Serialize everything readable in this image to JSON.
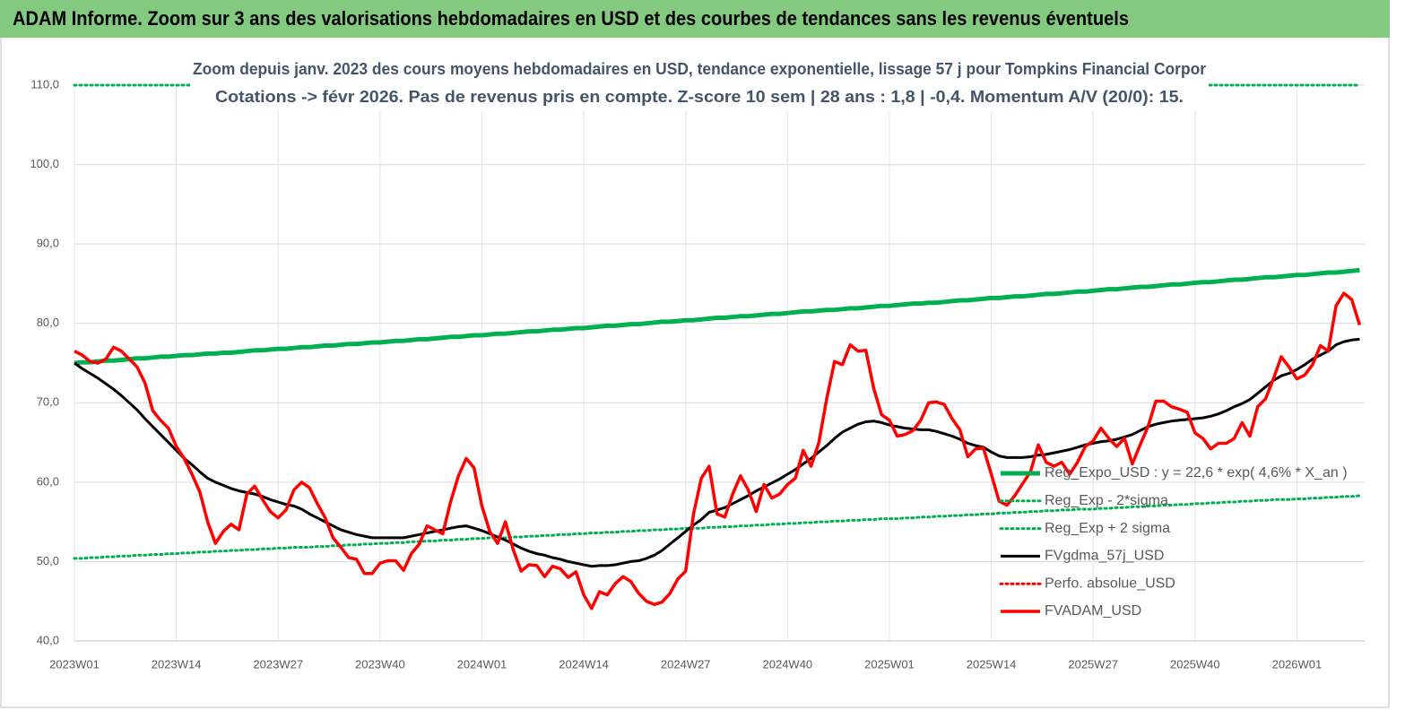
{
  "chart_data": {
    "type": "line",
    "title": "ADAM Informe. Zoom sur 3 ans des valorisations hebdomadaires en USD et des courbes de tendances sans les revenus éventuels",
    "subtitle": [
      "Zoom depuis janv. 2023 des cours moyens hebdomadaires en USD, tendance exponentielle, lissage 57 j pour Tompkins Financial Corpor",
      "Cotations -> févr 2026.  Pas de revenus pris en compte. Z-score 10 sem | 28 ans : 1,8 | -0,4. Momentum A/V (20/0): 15."
    ],
    "categories": [
      "2023W01",
      null,
      null,
      null,
      null,
      null,
      null,
      null,
      null,
      null,
      null,
      null,
      null,
      "2023W14",
      null,
      null,
      null,
      null,
      null,
      null,
      null,
      null,
      null,
      null,
      null,
      null,
      "2023W27",
      null,
      null,
      null,
      null,
      null,
      null,
      null,
      null,
      null,
      null,
      null,
      null,
      "2023W40",
      null,
      null,
      null,
      null,
      null,
      null,
      null,
      null,
      null,
      null,
      null,
      null,
      "2024W01",
      null,
      null,
      null,
      null,
      null,
      null,
      null,
      null,
      null,
      null,
      null,
      null,
      "2024W14",
      null,
      null,
      null,
      null,
      null,
      null,
      null,
      null,
      null,
      null,
      null,
      null,
      "2024W27",
      null,
      null,
      null,
      null,
      null,
      null,
      null,
      null,
      null,
      null,
      null,
      null,
      "2024W40",
      null,
      null,
      null,
      null,
      null,
      null,
      null,
      null,
      null,
      null,
      null,
      null,
      "2025W01",
      null,
      null,
      null,
      null,
      null,
      null,
      null,
      null,
      null,
      null,
      null,
      null,
      "2025W14",
      null,
      null,
      null,
      null,
      null,
      null,
      null,
      null,
      null,
      null,
      null,
      null,
      "2025W27",
      null,
      null,
      null,
      null,
      null,
      null,
      null,
      null,
      null,
      null,
      null,
      null,
      "2025W40",
      null,
      null,
      null,
      null,
      null,
      null,
      null,
      null,
      null,
      null,
      null,
      null,
      "2026W01",
      null,
      null,
      null,
      null,
      null,
      null,
      null,
      null
    ],
    "ylim": [
      40,
      110
    ],
    "yticks": [
      {
        "value": 40,
        "label": "40,0"
      },
      {
        "value": 50,
        "label": "50,0"
      },
      {
        "value": 60,
        "label": "60,0"
      },
      {
        "value": 70,
        "label": "70,0"
      },
      {
        "value": 80,
        "label": "80,0"
      },
      {
        "value": 90,
        "label": "90,0"
      },
      {
        "value": 100,
        "label": "100,0"
      },
      {
        "value": 110,
        "label": "110,0"
      }
    ],
    "grid": true,
    "series": [
      {
        "name": "Reg_Expo_USD : y = 22,6 * exp( 4,6% *  X_an )",
        "color": "#00b050",
        "style": "thick",
        "values": [
          75.0,
          75.1,
          75.1,
          75.2,
          75.3,
          75.3,
          75.4,
          75.5,
          75.6,
          75.6,
          75.7,
          75.8,
          75.8,
          75.9,
          76.0,
          76.0,
          76.1,
          76.2,
          76.2,
          76.3,
          76.3,
          76.4,
          76.5,
          76.6,
          76.6,
          76.7,
          76.8,
          76.8,
          76.9,
          77.0,
          77.0,
          77.1,
          77.2,
          77.2,
          77.3,
          77.4,
          77.4,
          77.5,
          77.6,
          77.6,
          77.7,
          77.8,
          77.8,
          77.9,
          78.0,
          78.0,
          78.1,
          78.2,
          78.3,
          78.3,
          78.4,
          78.5,
          78.5,
          78.6,
          78.7,
          78.7,
          78.8,
          78.9,
          79.0,
          79.0,
          79.1,
          79.2,
          79.2,
          79.3,
          79.4,
          79.4,
          79.5,
          79.6,
          79.7,
          79.7,
          79.8,
          79.9,
          79.9,
          80.0,
          80.1,
          80.2,
          80.2,
          80.3,
          80.4,
          80.4,
          80.5,
          80.6,
          80.7,
          80.7,
          80.8,
          80.9,
          80.9,
          81.0,
          81.1,
          81.2,
          81.2,
          81.3,
          81.4,
          81.5,
          81.5,
          81.6,
          81.7,
          81.7,
          81.8,
          81.9,
          81.9,
          82.0,
          82.1,
          82.2,
          82.2,
          82.3,
          82.4,
          82.5,
          82.5,
          82.6,
          82.6,
          82.7,
          82.8,
          82.9,
          82.9,
          83.0,
          83.1,
          83.2,
          83.2,
          83.3,
          83.4,
          83.4,
          83.5,
          83.6,
          83.7,
          83.7,
          83.8,
          83.9,
          84.0,
          84.0,
          84.1,
          84.2,
          84.3,
          84.3,
          84.4,
          84.5,
          84.6,
          84.6,
          84.7,
          84.8,
          84.9,
          84.9,
          85.0,
          85.1,
          85.2,
          85.2,
          85.3,
          85.4,
          85.5,
          85.5,
          85.6,
          85.7,
          85.8,
          85.8,
          85.9,
          86.0,
          86.1,
          86.1,
          86.2,
          86.3,
          86.4,
          86.4,
          86.5,
          86.6,
          86.7
        ]
      },
      {
        "name": "Reg_Exp - 2*sigma",
        "color": "#00b050",
        "style": "dotted",
        "values": [
          50.4,
          50.4,
          50.5,
          50.5,
          50.6,
          50.6,
          50.7,
          50.7,
          50.8,
          50.8,
          50.9,
          50.9,
          51.0,
          51.0,
          51.1,
          51.1,
          51.2,
          51.2,
          51.3,
          51.3,
          51.4,
          51.4,
          51.5,
          51.5,
          51.6,
          51.6,
          51.7,
          51.7,
          51.8,
          51.8,
          51.8,
          51.9,
          51.9,
          52.0,
          52.0,
          52.1,
          52.1,
          52.2,
          52.2,
          52.3,
          52.3,
          52.4,
          52.4,
          52.5,
          52.5,
          52.6,
          52.6,
          52.7,
          52.7,
          52.8,
          52.8,
          52.9,
          52.9,
          53.0,
          53.0,
          53.0,
          53.1,
          53.1,
          53.2,
          53.2,
          53.3,
          53.3,
          53.4,
          53.4,
          53.5,
          53.5,
          53.6,
          53.6,
          53.7,
          53.7,
          53.8,
          53.8,
          53.9,
          53.9,
          54.0,
          54.0,
          54.1,
          54.1,
          54.2,
          54.2,
          54.2,
          54.3,
          54.3,
          54.4,
          54.4,
          54.5,
          54.5,
          54.6,
          54.6,
          54.7,
          54.7,
          54.8,
          54.8,
          54.9,
          54.9,
          55.0,
          55.0,
          55.1,
          55.1,
          55.2,
          55.2,
          55.3,
          55.3,
          55.4,
          55.4,
          55.4,
          55.5,
          55.5,
          55.6,
          55.6,
          55.7,
          55.7,
          55.8,
          55.8,
          55.9,
          55.9,
          56.0,
          56.0,
          56.1,
          56.1,
          56.2,
          56.2,
          56.3,
          56.3,
          56.4,
          56.4,
          56.5,
          56.5,
          56.6,
          56.6,
          56.6,
          56.7,
          56.7,
          56.8,
          56.8,
          56.9,
          56.9,
          57.0,
          57.0,
          57.1,
          57.1,
          57.2,
          57.2,
          57.3,
          57.3,
          57.4,
          57.4,
          57.5,
          57.5,
          57.6,
          57.6,
          57.7,
          57.7,
          57.8,
          57.8,
          57.8,
          57.9,
          57.9,
          58.0,
          58.0,
          58.1,
          58.1,
          58.2,
          58.2,
          58.3
        ]
      },
      {
        "name": "Reg_Exp + 2 sigma",
        "color": "#00b050",
        "style": "dotted",
        "values": [
          110,
          110,
          110,
          110,
          110,
          110,
          110,
          110,
          110,
          110,
          110,
          110,
          110,
          110,
          110,
          110,
          110,
          110,
          110,
          110,
          110,
          110,
          110,
          110,
          110,
          110,
          110,
          110,
          110,
          110,
          110,
          110,
          110,
          110,
          110,
          110,
          110,
          110,
          110,
          110,
          110,
          110,
          110,
          110,
          110,
          110,
          110,
          110,
          110,
          110,
          110,
          110,
          110,
          110,
          110,
          110,
          110,
          110,
          110,
          110,
          110,
          110,
          110,
          110,
          110,
          110,
          110,
          110,
          110,
          110,
          110,
          110,
          110,
          110,
          110,
          110,
          110,
          110,
          110,
          110,
          110,
          110,
          110,
          110,
          110,
          110,
          110,
          110,
          110,
          110,
          110,
          110,
          110,
          110,
          110,
          110,
          110,
          110,
          110,
          110,
          110,
          110,
          110,
          110,
          110,
          110,
          110,
          110,
          110,
          110,
          110,
          110,
          110,
          110,
          110,
          110,
          110,
          110,
          110,
          110,
          110,
          110,
          110,
          110,
          110,
          110,
          110,
          110,
          110,
          110,
          110,
          110,
          110,
          110,
          110,
          110,
          110,
          110,
          110,
          110,
          110,
          110,
          110,
          110,
          110,
          110,
          110,
          110,
          110,
          110,
          110,
          110,
          110,
          110,
          110,
          110,
          110,
          110,
          110,
          110,
          110,
          110,
          110,
          110,
          110
        ]
      },
      {
        "name": "FVgdma_57j_USD",
        "color": "#000000",
        "style": "solid",
        "values": [
          75,
          74.3,
          73.7,
          73.1,
          72.4,
          71.7,
          70.9,
          70.0,
          69.1,
          68.0,
          67.0,
          66.0,
          65.0,
          64.0,
          63.0,
          62.2,
          61.3,
          60.5,
          60.0,
          59.6,
          59.2,
          58.9,
          58.7,
          58.5,
          58.2,
          57.8,
          57.5,
          57.2,
          57.0,
          56.6,
          56.0,
          55.5,
          55.0,
          54.5,
          54.0,
          53.7,
          53.4,
          53.2,
          53.0,
          53.0,
          53.0,
          53.0,
          53.0,
          53.2,
          53.4,
          53.6,
          53.8,
          54.0,
          54.2,
          54.4,
          54.5,
          54.2,
          53.9,
          53.5,
          53.1,
          52.7,
          52.2,
          51.7,
          51.3,
          51.0,
          50.8,
          50.5,
          50.3,
          50.0,
          49.8,
          49.6,
          49.4,
          49.5,
          49.5,
          49.6,
          49.8,
          50.0,
          50.1,
          50.4,
          50.8,
          51.4,
          52.2,
          53.0,
          53.8,
          54.6,
          55.3,
          56.2,
          56.5,
          56.8,
          57.3,
          57.8,
          58.3,
          58.9,
          59.4,
          59.9,
          60.4,
          61.0,
          61.6,
          62.3,
          63.0,
          63.8,
          64.6,
          65.5,
          66.3,
          66.8,
          67.3,
          67.6,
          67.7,
          67.5,
          67.2,
          67.0,
          66.8,
          66.7,
          66.6,
          66.6,
          66.4,
          66.1,
          65.8,
          65.4,
          64.9,
          64.6,
          64.4,
          63.8,
          63.3,
          63.1,
          63.1,
          63.1,
          63.2,
          63.4,
          63.5,
          63.7,
          63.9,
          64.1,
          64.4,
          64.7,
          64.9,
          65.1,
          65.2,
          65.4,
          65.7,
          66.0,
          66.5,
          67.0,
          67.3,
          67.5,
          67.7,
          67.8,
          67.9,
          68.0,
          68.1,
          68.3,
          68.6,
          69.0,
          69.5,
          69.9,
          70.4,
          71.2,
          72.0,
          72.8,
          73.4,
          73.7,
          74.2,
          74.8,
          75.5,
          76.0,
          76.5,
          77.3,
          77.7,
          77.9,
          78.0
        ]
      },
      {
        "name": "Perfo. absolue_USD",
        "color": "#ff0000",
        "style": "dotted",
        "values": [
          null,
          null,
          null,
          null,
          null,
          null,
          null,
          null,
          null,
          null,
          null,
          null,
          null,
          null,
          null,
          null,
          null,
          null,
          null,
          null,
          null,
          null,
          null,
          null,
          null,
          null,
          null,
          null,
          null,
          null,
          null,
          null,
          null,
          null,
          null,
          null,
          null,
          null,
          null,
          null,
          null,
          null,
          null,
          null,
          null,
          null,
          null,
          null,
          null,
          null,
          null,
          null,
          null,
          null,
          null,
          null,
          null,
          null,
          null,
          null,
          null,
          null,
          null,
          null,
          null,
          null,
          null,
          null,
          null,
          null,
          null,
          null,
          null,
          null,
          null,
          null,
          null,
          null,
          null,
          null,
          null,
          null,
          null,
          null,
          null,
          null,
          null,
          null,
          null,
          null,
          null,
          null,
          null,
          null,
          null,
          null,
          null,
          null,
          null,
          null,
          null,
          null,
          null,
          null,
          null,
          null,
          null,
          null,
          null,
          null,
          null,
          null,
          null,
          null,
          null,
          null,
          null,
          null,
          null,
          null,
          null,
          null,
          null,
          null,
          null,
          null,
          null,
          null,
          null,
          null,
          null,
          null,
          null,
          null,
          null,
          null,
          null,
          null,
          null,
          null,
          null,
          null,
          null,
          null,
          null,
          null,
          null,
          null,
          null,
          null,
          null,
          null,
          null,
          null,
          null,
          null,
          null,
          null,
          null,
          null,
          null,
          null,
          null,
          null,
          null
        ]
      },
      {
        "name": "FVADAM_USD",
        "color": "#ff0000",
        "style": "thick-red",
        "values": [
          76.5,
          76,
          75.2,
          75,
          75.5,
          77,
          76.5,
          75.5,
          74.5,
          72.5,
          69,
          67.8,
          66.8,
          64.5,
          63,
          61,
          58.8,
          55,
          52.3,
          53.8,
          54.7,
          54,
          58.5,
          59.5,
          57.8,
          56.3,
          55.5,
          56.5,
          59,
          60,
          59.3,
          57.3,
          55.5,
          53,
          51.8,
          50.5,
          50.3,
          48.5,
          48.5,
          49.8,
          50.1,
          50.1,
          48.9,
          51,
          52.2,
          54.5,
          54,
          53.5,
          57.5,
          60.8,
          63,
          61.8,
          57,
          53.8,
          52.3,
          55,
          51.5,
          48.8,
          49.6,
          49.5,
          48.1,
          49.4,
          49.1,
          48,
          48.7,
          45.8,
          44.1,
          46.2,
          45.8,
          47.2,
          48.1,
          47.5,
          46,
          45,
          44.6,
          44.9,
          46,
          47.8,
          48.8,
          56,
          60.5,
          62,
          56,
          55.6,
          58.5,
          60.8,
          59,
          56.3,
          59.7,
          58,
          58.5,
          59.7,
          60.5,
          64,
          62,
          65,
          70.5,
          75.2,
          74.8,
          77.3,
          76.5,
          76.6,
          71.8,
          68.5,
          67.8,
          65.8,
          66,
          66.5,
          67.8,
          70,
          70.1,
          69.8,
          68,
          66.6,
          63.2,
          64.2,
          64.3,
          61,
          57.6,
          57.1,
          58.3,
          59.8,
          61.3,
          64.7,
          62.5,
          62,
          62.5,
          61,
          62.5,
          64.5,
          65.2,
          66.8,
          65.5,
          64.5,
          65.5,
          62.3,
          64.7,
          67,
          70.2,
          70.2,
          69.5,
          69.2,
          68.8,
          66.2,
          65.5,
          64.2,
          64.9,
          64.9,
          65.5,
          67.5,
          65.8,
          69.5,
          70.5,
          73,
          75.8,
          74.5,
          73,
          73.5,
          74.8,
          77.2,
          76.5,
          82.2,
          83.8,
          83,
          79.8
        ]
      }
    ]
  }
}
